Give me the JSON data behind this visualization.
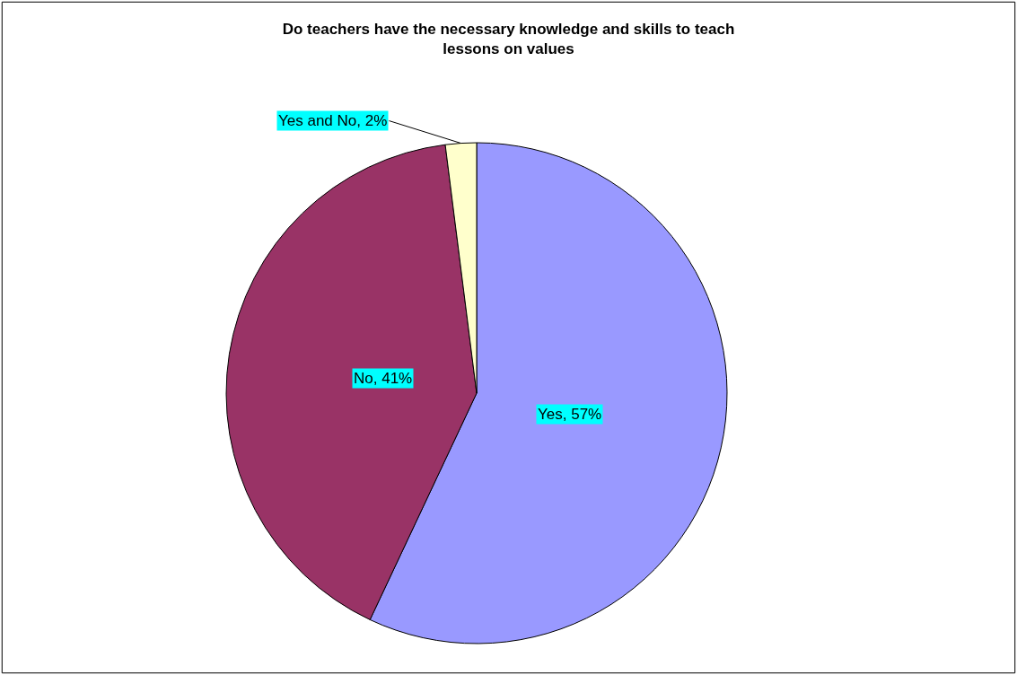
{
  "chart_data": {
    "type": "pie",
    "title": "Do teachers have the necessary knowledge and skills to teach lessons on values",
    "categories": [
      "Yes",
      "No",
      "Yes and No"
    ],
    "values": [
      57,
      41,
      2
    ],
    "colors": [
      "#9999ff",
      "#993366",
      "#ffffcc"
    ],
    "value_labels": [
      "57%",
      "41%",
      "2%"
    ],
    "legend": false
  }
}
